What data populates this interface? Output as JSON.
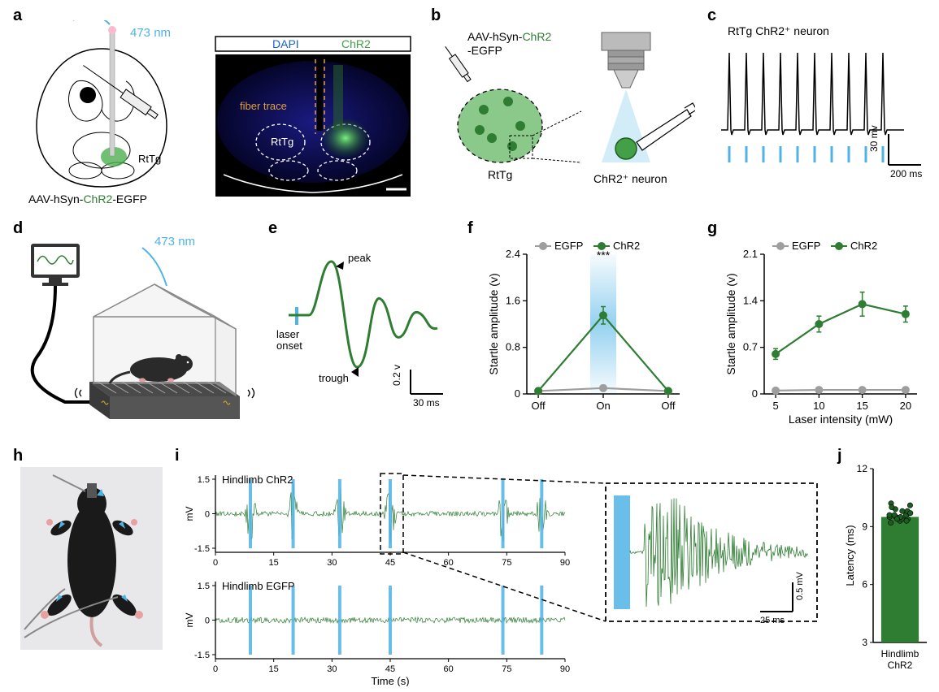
{
  "colors": {
    "green": "#2e7d32",
    "light_green": "#4caf50",
    "egfp_green": "#43a047",
    "gray": "#9e9e9e",
    "blue": "#4fb3e6",
    "dark_blue": "#1976d2",
    "dapi_blue": "#1a1a70",
    "dotted_orange": "#e0a040",
    "black": "#000000",
    "white": "#ffffff",
    "bg_light": "#f5f5f5"
  },
  "panels": {
    "a": {
      "label": "a",
      "wavelength": "473 nm",
      "virus": "AAV-hSyn-",
      "virus_chr2": "ChR2",
      "virus_suffix": "-EGFP",
      "rttg": "RtTg",
      "legend_dapi": "DAPI",
      "legend_chr2": "ChR2",
      "fiber_trace": "fiber trace"
    },
    "b": {
      "label": "b",
      "virus_line1": "AAV-hSyn-",
      "virus_chr2": "ChR2",
      "virus_line2": "-EGFP",
      "rttg": "RtTg",
      "chr2_neuron": "ChR2⁺ neuron"
    },
    "c": {
      "label": "c",
      "title": "RtTg ChR2⁺ neuron",
      "y_scale": "30 mv",
      "x_scale": "200 ms",
      "spike_count": 10
    },
    "d": {
      "label": "d",
      "wavelength": "473 nm"
    },
    "e": {
      "label": "e",
      "peak": "peak",
      "trough": "trough",
      "laser_onset": "laser\nonset",
      "y_scale": "0.2 v",
      "x_scale": "30 ms"
    },
    "f": {
      "label": "f",
      "type": "line",
      "y_label": "Startle amplitude (v)",
      "y_ticks": [
        0,
        0.8,
        1.6,
        2.4
      ],
      "x_ticks": [
        "Off",
        "On",
        "Off"
      ],
      "series": {
        "EGFP": {
          "legend": "EGFP",
          "color": "#9e9e9e",
          "values": [
            0.05,
            0.1,
            0.05
          ],
          "err": [
            0.03,
            0.05,
            0.03
          ]
        },
        "ChR2": {
          "legend": "ChR2",
          "color": "#2e7d32",
          "values": [
            0.05,
            1.35,
            0.05
          ],
          "err": [
            0.03,
            0.15,
            0.03
          ]
        }
      },
      "sig": "***"
    },
    "g": {
      "label": "g",
      "type": "line",
      "y_label": "Startle amplitude (v)",
      "y_ticks": [
        0,
        0.7,
        1.4,
        2.1
      ],
      "x_label": "Laser intensity (mW)",
      "x_ticks": [
        5,
        10,
        15,
        20
      ],
      "series": {
        "EGFP": {
          "legend": "EGFP",
          "color": "#9e9e9e",
          "values": [
            0.05,
            0.06,
            0.06,
            0.06
          ],
          "err": [
            0.03,
            0.03,
            0.03,
            0.03
          ]
        },
        "ChR2": {
          "legend": "ChR2",
          "color": "#2e7d32",
          "values": [
            0.6,
            1.05,
            1.35,
            1.2
          ],
          "err": [
            0.08,
            0.12,
            0.18,
            0.12
          ]
        }
      }
    },
    "h": {
      "label": "h"
    },
    "i": {
      "label": "i",
      "top_label": "Hindlimb  ChR2",
      "bot_label": "Hindlimb  EGFP",
      "y_ticks": [
        -1.5,
        0,
        1.5
      ],
      "y_unit": "mV",
      "x_ticks": [
        0,
        15,
        30,
        45,
        60,
        75,
        90
      ],
      "x_label": "Time (s)",
      "laser_times": [
        9,
        20,
        32,
        45,
        74,
        84
      ],
      "inset_y_scale": "0.5 mV",
      "inset_x_scale": "25 ms"
    },
    "j": {
      "label": "j",
      "y_label": "Latency (ms)",
      "y_ticks": [
        3,
        6,
        9,
        12
      ],
      "x_label": "Hindlimb\nChR2",
      "bar_value": 9.5,
      "points": [
        9.3,
        9.4,
        9.5,
        9.6,
        9.8,
        9.2,
        9.7,
        9.5,
        9.9,
        10.1,
        10.2,
        9.4,
        9.3,
        9.6,
        9.8,
        9.5,
        10.0,
        9.7,
        9.6,
        9.4
      ],
      "bar_color": "#2e7d32",
      "point_color": "#1b5e20"
    }
  }
}
